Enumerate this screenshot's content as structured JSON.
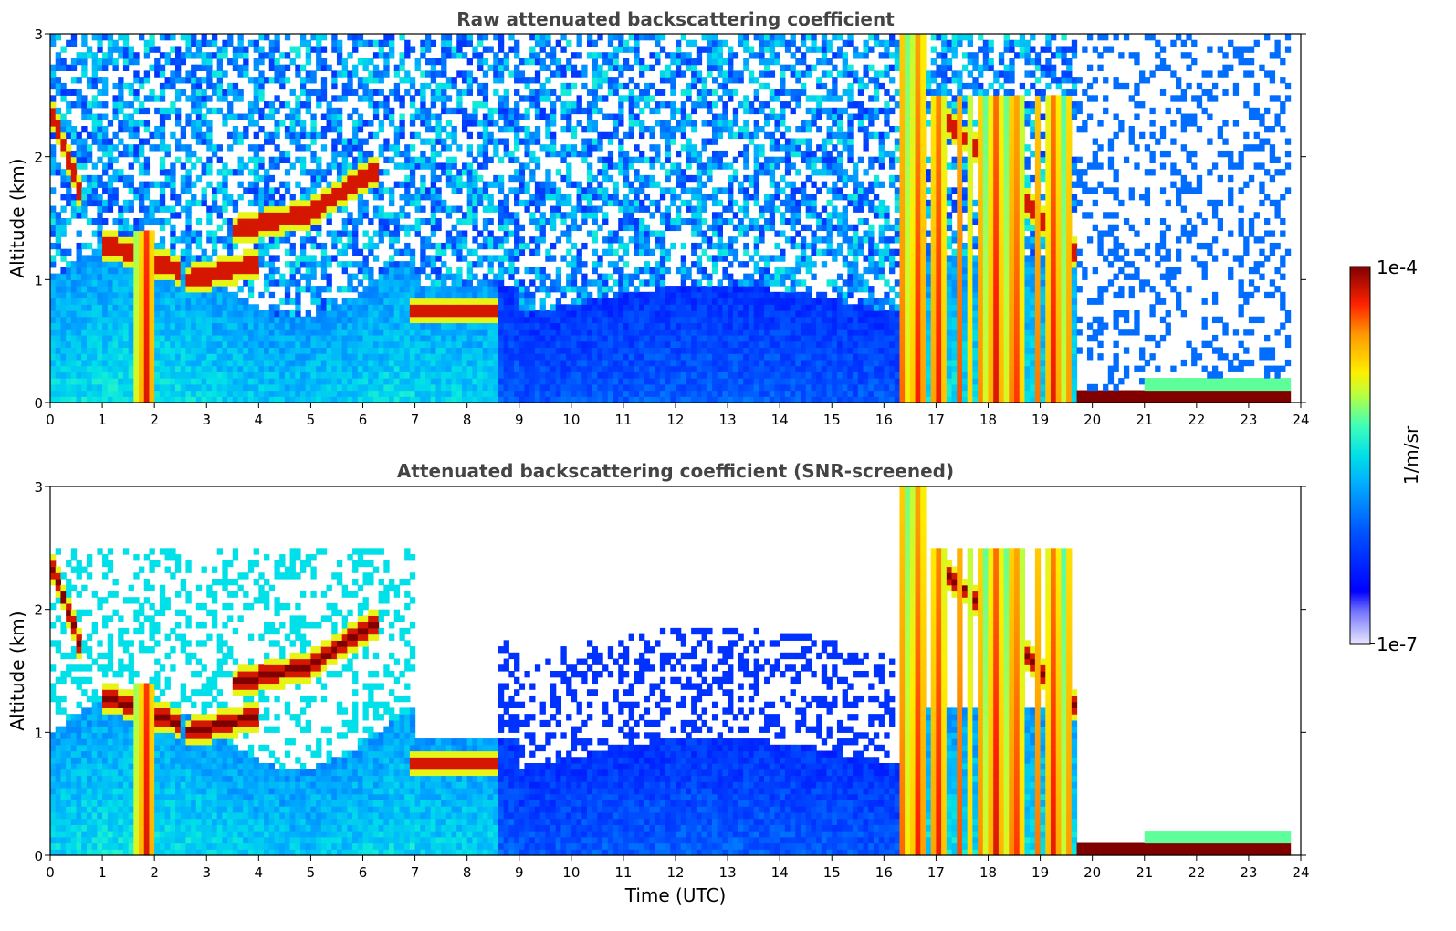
{
  "chart_data": [
    {
      "type": "heatmap",
      "title": "Raw attenuated backscattering coefficient",
      "xlabel": "",
      "ylabel": "Altitude (km)",
      "xlim": [
        0,
        24
      ],
      "ylim": [
        0,
        3
      ],
      "xticks": [
        "0",
        "1",
        "2",
        "3",
        "4",
        "5",
        "6",
        "7",
        "8",
        "9",
        "10",
        "11",
        "12",
        "13",
        "14",
        "15",
        "16",
        "17",
        "18",
        "19",
        "20",
        "21",
        "22",
        "23",
        "24"
      ],
      "yticks": [
        "0",
        "1",
        "2",
        "3"
      ],
      "features": [
        {
          "kind": "cloud",
          "x": [
            0.0,
            0.6
          ],
          "y": [
            1.7,
            2.4
          ],
          "value": -4.5
        },
        {
          "kind": "cloud",
          "x": [
            1.0,
            2.5
          ],
          "y": [
            1.0,
            1.6
          ],
          "value": -4.8
        },
        {
          "kind": "cloud",
          "x": [
            2.6,
            4.0
          ],
          "y": [
            1.0,
            1.5
          ],
          "value": -4.8
        },
        {
          "kind": "cloud",
          "x": [
            3.5,
            4.8
          ],
          "y": [
            1.15,
            1.6
          ],
          "value": -4.5
        },
        {
          "kind": "cloud",
          "x": [
            4.8,
            6.3
          ],
          "y": [
            1.45,
            1.95
          ],
          "value": -4.5
        },
        {
          "kind": "cloud",
          "x": [
            6.9,
            8.6
          ],
          "y": [
            0.65,
            1.1
          ],
          "value": -4.5
        },
        {
          "kind": "precip",
          "x": [
            1.65,
            2.05
          ],
          "y": [
            0,
            1.4
          ],
          "value": -4.4
        },
        {
          "kind": "precip",
          "x": [
            16.3,
            19.7
          ],
          "y": [
            0,
            3.0
          ],
          "value": -4.3
        },
        {
          "kind": "surface",
          "x": [
            19.75,
            23.8
          ],
          "y": [
            0,
            0.12
          ],
          "value": -4.0
        }
      ],
      "notes": "noisy clear-air returns above the boundary layer"
    },
    {
      "type": "heatmap",
      "title": "Attenuated backscattering coefficient (SNR-screened)",
      "xlabel": "Time (UTC)",
      "ylabel": "Altitude (km)",
      "xlim": [
        0,
        24
      ],
      "ylim": [
        0,
        3
      ],
      "xticks": [
        "0",
        "1",
        "2",
        "3",
        "4",
        "5",
        "6",
        "7",
        "8",
        "9",
        "10",
        "11",
        "12",
        "13",
        "14",
        "15",
        "16",
        "17",
        "18",
        "19",
        "20",
        "21",
        "22",
        "23",
        "24"
      ],
      "yticks": [
        "0",
        "1",
        "2",
        "3"
      ],
      "colorbar": {
        "label": "1/m/sr",
        "min_label": "1e-7",
        "max_label": "1e-4",
        "scale": "log"
      }
    }
  ]
}
